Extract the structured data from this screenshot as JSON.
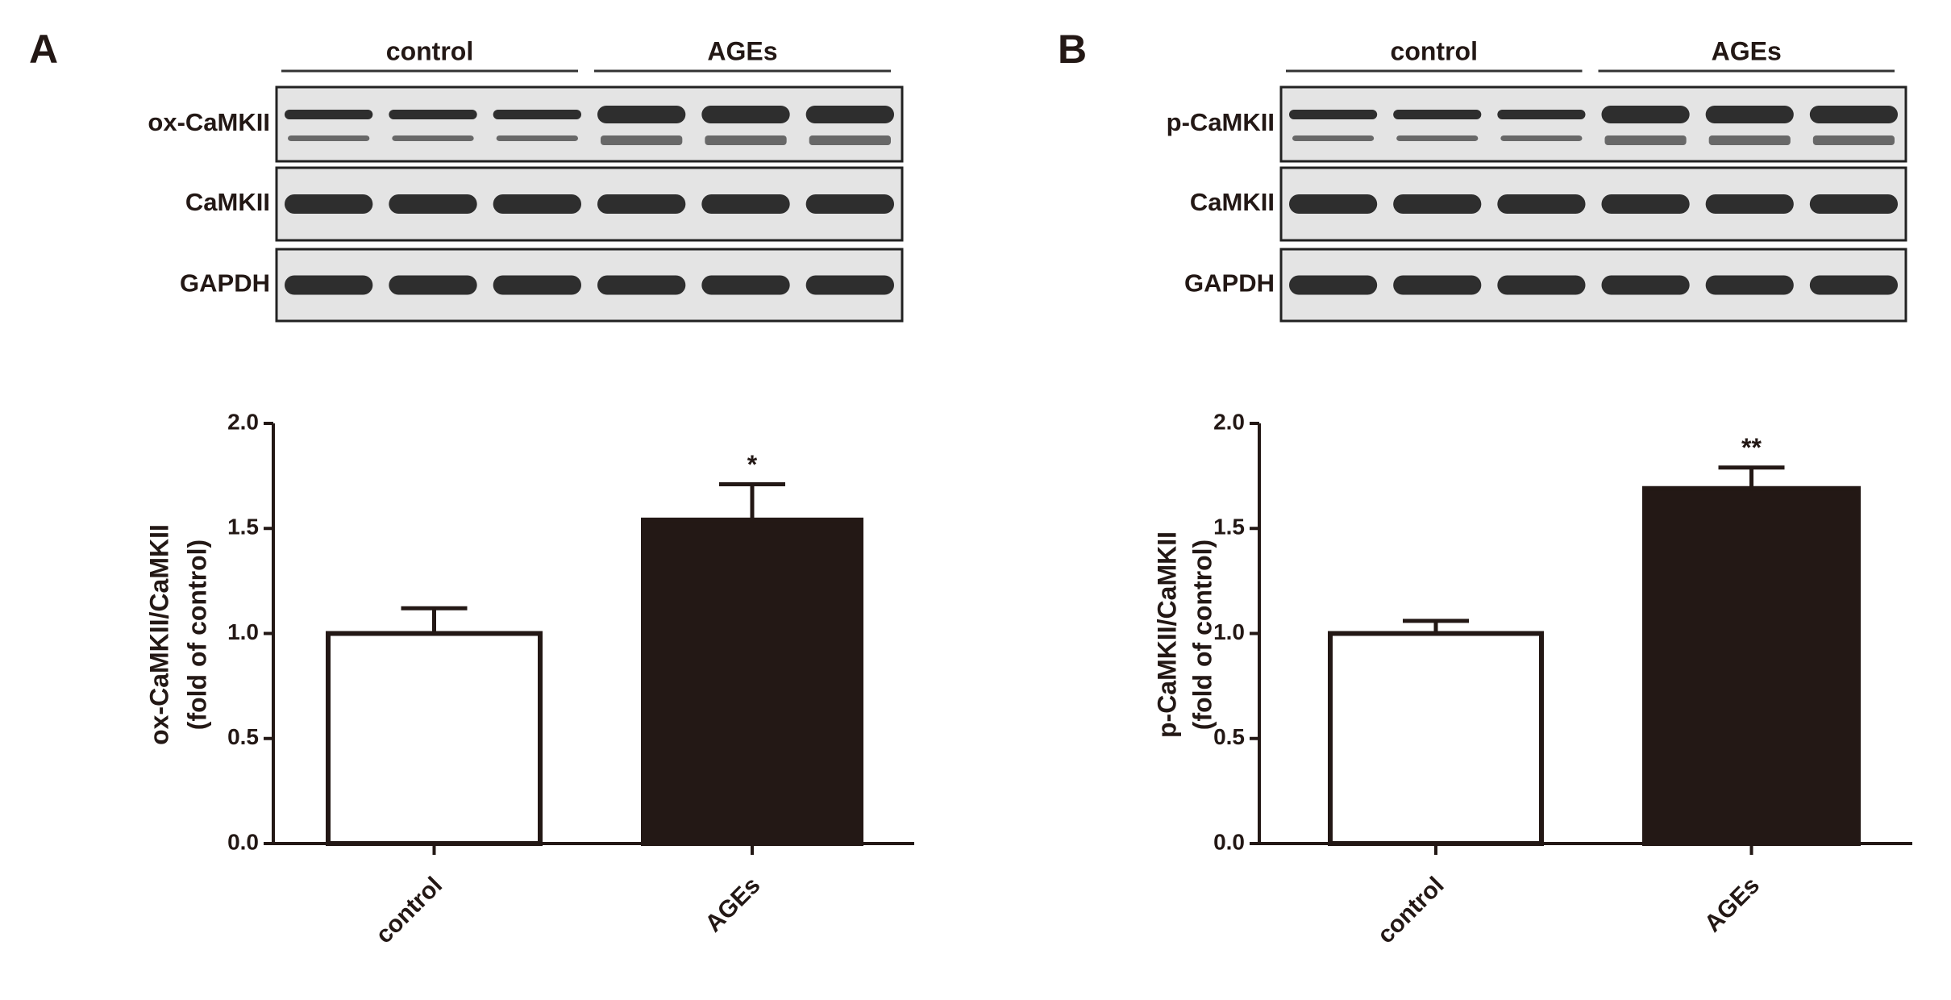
{
  "chart_data": [
    {
      "type": "bar",
      "panel": "A",
      "blot": {
        "groups": [
          "control",
          "AGEs"
        ],
        "rows": [
          "ox-CaMKII",
          "CaMKII",
          "GAPDH"
        ]
      },
      "y_label": [
        "ox-CaMKII/CaMKII",
        "(fold of control)"
      ],
      "categories": [
        "control",
        "AGEs"
      ],
      "values": [
        1.0,
        1.54
      ],
      "errors": [
        0.12,
        0.17
      ],
      "colors": [
        "#ffffff",
        "#231815"
      ],
      "annotations": [
        null,
        "*"
      ],
      "ylim": [
        0,
        2
      ],
      "yticks": [
        {
          "value": 0,
          "label": "0.0"
        },
        {
          "value": 0.5,
          "label": "0.5"
        },
        {
          "value": 1,
          "label": "1.0"
        },
        {
          "value": 1.5,
          "label": "1.5"
        },
        {
          "value": 2,
          "label": "2.0"
        }
      ]
    },
    {
      "type": "bar",
      "panel": "B",
      "blot": {
        "groups": [
          "control",
          "AGEs"
        ],
        "rows": [
          "p-CaMKII",
          "CaMKII",
          "GAPDH"
        ]
      },
      "y_label": [
        "p-CaMKII/CaMKII",
        "(fold of control)"
      ],
      "categories": [
        "control",
        "AGEs"
      ],
      "values": [
        1.0,
        1.69
      ],
      "errors": [
        0.06,
        0.1
      ],
      "colors": [
        "#ffffff",
        "#231815"
      ],
      "annotations": [
        null,
        "**"
      ],
      "ylim": [
        0,
        2
      ],
      "yticks": [
        {
          "value": 0,
          "label": "0.0"
        },
        {
          "value": 0.5,
          "label": "0.5"
        },
        {
          "value": 1,
          "label": "1.0"
        },
        {
          "value": 1.5,
          "label": "1.5"
        },
        {
          "value": 2,
          "label": "2.0"
        }
      ]
    }
  ]
}
